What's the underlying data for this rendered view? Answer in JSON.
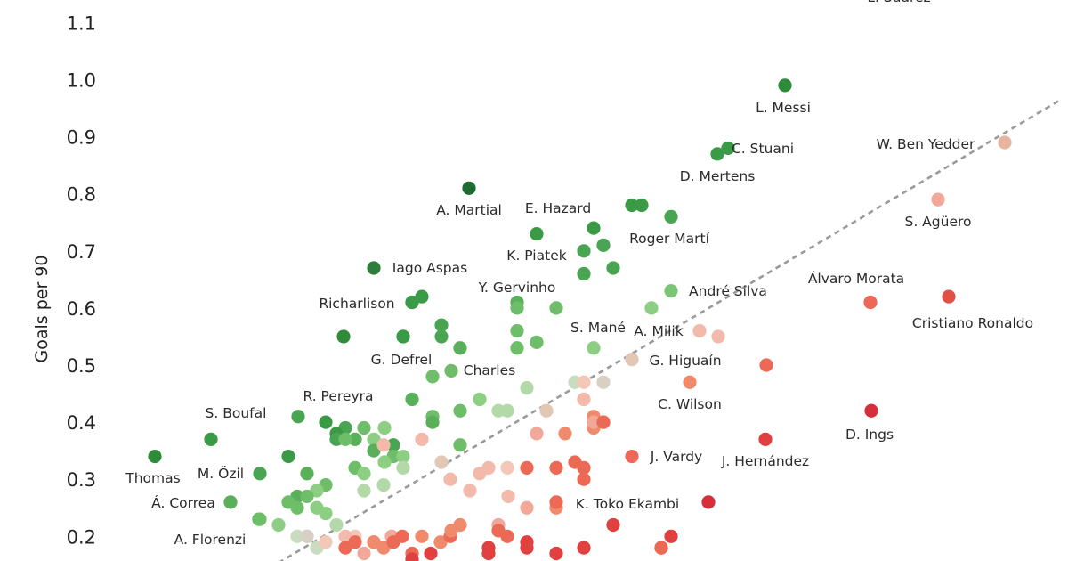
{
  "chart_data": {
    "type": "scatter",
    "ylabel": "Goals per 90",
    "ylim": [
      0.17,
      1.16
    ],
    "yticks": [
      "0.2",
      "0.3",
      "0.4",
      "0.5",
      "0.6",
      "0.7",
      "0.8",
      "0.9",
      "1.0",
      "1.1"
    ],
    "reference_line": {
      "style": "dashed",
      "color": "#9a9a9a",
      "from": [
        0.0,
        0.17
      ],
      "to": [
        1.0,
        0.96
      ]
    },
    "labeled_points": [
      {
        "name": "L. Suárez",
        "y": 1.2,
        "color": "#2e7d32",
        "label": "L. Suárez"
      },
      {
        "name": "L. Messi",
        "y": 0.99,
        "color": "#2e8b3a",
        "label": "L. Messi"
      },
      {
        "name": "W. Ben Yedder",
        "y": 0.89,
        "color": "#e8b4a0",
        "label": "W. Ben Yedder"
      },
      {
        "name": "C. Stuani",
        "y": 0.88,
        "color": "#3a9a46",
        "label": "C. Stuani"
      },
      {
        "name": "D. Mertens",
        "y": 0.87,
        "color": "#3a9a46",
        "label": "D. Mertens"
      },
      {
        "name": "A. Martial",
        "y": 0.81,
        "color": "#1e6b33",
        "label": "A. Martial"
      },
      {
        "name": "S. Agüero",
        "y": 0.79,
        "color": "#f1a899",
        "label": "S. Agüero"
      },
      {
        "name": "E. Hazard",
        "y": 0.74,
        "color": "#3a9a46",
        "label": "E. Hazard"
      },
      {
        "name": "Roger Martí",
        "y": 0.76,
        "color": "#4aa552",
        "label": "Roger Martí"
      },
      {
        "name": "K. Piatek",
        "y": 0.73,
        "color": "#3a9a46",
        "label": "K. Piatek"
      },
      {
        "name": "Iago Aspas",
        "y": 0.67,
        "color": "#2e7d3a",
        "label": "Iago Aspas"
      },
      {
        "name": "André Silva",
        "y": 0.63,
        "color": "#7cc576",
        "label": "André Silva"
      },
      {
        "name": "Álvaro Morata",
        "y": 0.61,
        "color": "#ec6a55",
        "label": "Álvaro Morata"
      },
      {
        "name": "Cristiano Ronaldo",
        "y": 0.62,
        "color": "#e05045",
        "label": "Cristiano Ronaldo"
      },
      {
        "name": "Richarlison",
        "y": 0.61,
        "color": "#3a9a46",
        "label": "Richarlison"
      },
      {
        "name": "Y. Gervinho",
        "y": 0.6,
        "color": "#6ebd68",
        "label": "Y. Gervinho"
      },
      {
        "name": "S. Mané",
        "y": 0.53,
        "color": "#8ccf82",
        "label": "S. Mané"
      },
      {
        "name": "A. Milik",
        "y": 0.56,
        "color": "#f3b9ab",
        "label": "A. Milik"
      },
      {
        "name": "G. Defrel",
        "y": 0.55,
        "color": "#3a9a46",
        "label": "G. Defrel"
      },
      {
        "name": "G. Higuaín",
        "y": 0.51,
        "color": "#e2c8b4",
        "label": "G. Higuaín"
      },
      {
        "name": "Charles",
        "y": 0.49,
        "color": "#6ebd68",
        "label": "Charles"
      },
      {
        "name": "C. Wilson",
        "y": 0.47,
        "color": "#f08a6c",
        "label": "C. Wilson"
      },
      {
        "name": "R. Pereyra",
        "y": 0.41,
        "color": "#4aa552",
        "label": "R. Pereyra"
      },
      {
        "name": "S. Boufal",
        "y": 0.37,
        "color": "#3a9a46",
        "label": "S. Boufal"
      },
      {
        "name": "D. Ings",
        "y": 0.42,
        "color": "#d42f3a",
        "label": "D. Ings"
      },
      {
        "name": "J. Hernández",
        "y": 0.37,
        "color": "#e04040",
        "label": "J. Hernández"
      },
      {
        "name": "J. Vardy",
        "y": 0.34,
        "color": "#ec6a55",
        "label": "J. Vardy"
      },
      {
        "name": "Thomas",
        "y": 0.34,
        "color": "#2e8b3a",
        "label": "Thomas"
      },
      {
        "name": "M. Özil",
        "y": 0.31,
        "color": "#4aa552",
        "label": "M. Özil"
      },
      {
        "name": "Á. Correa",
        "y": 0.26,
        "color": "#5ab05a",
        "label": "Á. Correa"
      },
      {
        "name": "K. Toko Ekambi",
        "y": 0.26,
        "color": "#ec6a55",
        "label": "K. Toko Ekambi"
      },
      {
        "name": "A. Florenzi",
        "y": 0.23,
        "color": "#6ebd68",
        "label": "A. Florenzi"
      }
    ],
    "other_points": [
      {
        "y": 0.26,
        "color": "#d42f3a"
      },
      {
        "y": 0.22,
        "color": "#e04040"
      },
      {
        "y": 0.18,
        "color": "#d42f3a"
      },
      {
        "y": 0.18,
        "color": "#e04040"
      },
      {
        "y": 0.5,
        "color": "#ec6a55"
      },
      {
        "y": 0.55,
        "color": "#f3b9ab"
      },
      {
        "y": 0.6,
        "color": "#8ccf82"
      },
      {
        "y": 0.78,
        "color": "#3a9a46"
      },
      {
        "y": 0.78,
        "color": "#3a9a46"
      },
      {
        "y": 0.7,
        "color": "#4aa552"
      },
      {
        "y": 0.71,
        "color": "#4aa552"
      },
      {
        "y": 0.66,
        "color": "#4aa552"
      },
      {
        "y": 0.67,
        "color": "#4aa552"
      },
      {
        "y": 0.61,
        "color": "#5ab05a"
      },
      {
        "y": 0.62,
        "color": "#3a9a46"
      },
      {
        "y": 0.61,
        "color": "#3a9a46"
      },
      {
        "y": 0.57,
        "color": "#4aa552"
      },
      {
        "y": 0.55,
        "color": "#4aa552"
      },
      {
        "y": 0.55,
        "color": "#2e8b3a"
      },
      {
        "y": 0.55,
        "color": "#2e8b3a"
      },
      {
        "y": 0.53,
        "color": "#5ab05a"
      },
      {
        "y": 0.56,
        "color": "#6ebd68"
      },
      {
        "y": 0.53,
        "color": "#6ebd68"
      },
      {
        "y": 0.54,
        "color": "#6ebd68"
      },
      {
        "y": 0.6,
        "color": "#6ebd68"
      },
      {
        "y": 0.48,
        "color": "#6ebd68"
      },
      {
        "y": 0.46,
        "color": "#b3d9a8"
      },
      {
        "y": 0.47,
        "color": "#c9dcc0"
      },
      {
        "y": 0.47,
        "color": "#d8d0c4"
      },
      {
        "y": 0.47,
        "color": "#f3c8b8"
      },
      {
        "y": 0.44,
        "color": "#f3b9ab"
      },
      {
        "y": 0.42,
        "color": "#e2c8b4"
      },
      {
        "y": 0.42,
        "color": "#b3d9a8"
      },
      {
        "y": 0.42,
        "color": "#b3d9a8"
      },
      {
        "y": 0.44,
        "color": "#8ccf82"
      },
      {
        "y": 0.42,
        "color": "#6ebd68"
      },
      {
        "y": 0.41,
        "color": "#6ebd68"
      },
      {
        "y": 0.44,
        "color": "#5ab05a"
      },
      {
        "y": 0.4,
        "color": "#5ab05a"
      },
      {
        "y": 0.39,
        "color": "#8ccf82"
      },
      {
        "y": 0.37,
        "color": "#8ccf82"
      },
      {
        "y": 0.39,
        "color": "#6ebd68"
      },
      {
        "y": 0.36,
        "color": "#6ebd68"
      },
      {
        "y": 0.4,
        "color": "#3a9a46"
      },
      {
        "y": 0.39,
        "color": "#4aa552"
      },
      {
        "y": 0.38,
        "color": "#3a9a46"
      },
      {
        "y": 0.37,
        "color": "#4aa552"
      },
      {
        "y": 0.37,
        "color": "#5ab05a"
      },
      {
        "y": 0.37,
        "color": "#6ebd68"
      },
      {
        "y": 0.36,
        "color": "#4aa552"
      },
      {
        "y": 0.35,
        "color": "#5ab05a"
      },
      {
        "y": 0.34,
        "color": "#6ebd68"
      },
      {
        "y": 0.34,
        "color": "#8ccf82"
      },
      {
        "y": 0.33,
        "color": "#8ccf82"
      },
      {
        "y": 0.32,
        "color": "#b3d9a8"
      },
      {
        "y": 0.34,
        "color": "#3a9a46"
      },
      {
        "y": 0.31,
        "color": "#5ab05a"
      },
      {
        "y": 0.32,
        "color": "#6ebd68"
      },
      {
        "y": 0.31,
        "color": "#8ccf82"
      },
      {
        "y": 0.29,
        "color": "#6ebd68"
      },
      {
        "y": 0.28,
        "color": "#8ccf82"
      },
      {
        "y": 0.28,
        "color": "#b3d9a8"
      },
      {
        "y": 0.29,
        "color": "#b3d9a8"
      },
      {
        "y": 0.27,
        "color": "#5ab05a"
      },
      {
        "y": 0.27,
        "color": "#6ebd68"
      },
      {
        "y": 0.26,
        "color": "#6ebd68"
      },
      {
        "y": 0.25,
        "color": "#6ebd68"
      },
      {
        "y": 0.25,
        "color": "#8ccf82"
      },
      {
        "y": 0.24,
        "color": "#8ccf82"
      },
      {
        "y": 0.23,
        "color": "#5ab05a"
      },
      {
        "y": 0.22,
        "color": "#8ccf82"
      },
      {
        "y": 0.22,
        "color": "#b3d9a8"
      },
      {
        "y": 0.2,
        "color": "#b3d9a8"
      },
      {
        "y": 0.2,
        "color": "#c9dcc0"
      },
      {
        "y": 0.18,
        "color": "#c9dcc0"
      },
      {
        "y": 0.2,
        "color": "#d8d0c4"
      },
      {
        "y": 0.19,
        "color": "#f3c8b8"
      },
      {
        "y": 0.2,
        "color": "#f3c8b8"
      },
      {
        "y": 0.2,
        "color": "#f3b9ab"
      },
      {
        "y": 0.19,
        "color": "#f3b9ab"
      },
      {
        "y": 0.2,
        "color": "#f1a899"
      },
      {
        "y": 0.17,
        "color": "#f1a899"
      },
      {
        "y": 0.19,
        "color": "#f08a6c"
      },
      {
        "y": 0.18,
        "color": "#f08a6c"
      },
      {
        "y": 0.2,
        "color": "#ec6a55"
      },
      {
        "y": 0.19,
        "color": "#ec6a55"
      },
      {
        "y": 0.18,
        "color": "#ec6a55"
      },
      {
        "y": 0.19,
        "color": "#ec6a55"
      },
      {
        "y": 0.17,
        "color": "#ec6a55"
      },
      {
        "y": 0.17,
        "color": "#e04040"
      },
      {
        "y": 0.2,
        "color": "#f08a6c"
      },
      {
        "y": 0.19,
        "color": "#f08a6c"
      },
      {
        "y": 0.2,
        "color": "#ec6a55"
      },
      {
        "y": 0.22,
        "color": "#f08a6c"
      },
      {
        "y": 0.21,
        "color": "#f08a6c"
      },
      {
        "y": 0.22,
        "color": "#f1a899"
      },
      {
        "y": 0.25,
        "color": "#f08a6c"
      },
      {
        "y": 0.25,
        "color": "#f1a899"
      },
      {
        "y": 0.27,
        "color": "#f3b9ab"
      },
      {
        "y": 0.28,
        "color": "#f3b9ab"
      },
      {
        "y": 0.31,
        "color": "#f3b9ab"
      },
      {
        "y": 0.32,
        "color": "#f3b9ab"
      },
      {
        "y": 0.32,
        "color": "#f3c8b8"
      },
      {
        "y": 0.33,
        "color": "#e2c8b4"
      },
      {
        "y": 0.3,
        "color": "#f3b9ab"
      },
      {
        "y": 0.36,
        "color": "#f3b9ab"
      },
      {
        "y": 0.37,
        "color": "#f3b9ab"
      },
      {
        "y": 0.38,
        "color": "#f1a899"
      },
      {
        "y": 0.38,
        "color": "#f08a6c"
      },
      {
        "y": 0.39,
        "color": "#f08a6c"
      },
      {
        "y": 0.41,
        "color": "#f08a6c"
      },
      {
        "y": 0.4,
        "color": "#f1a899"
      },
      {
        "y": 0.32,
        "color": "#ec6a55"
      },
      {
        "y": 0.32,
        "color": "#ec6a55"
      },
      {
        "y": 0.32,
        "color": "#ec6a55"
      },
      {
        "y": 0.33,
        "color": "#ec6a55"
      },
      {
        "y": 0.3,
        "color": "#ec6a55"
      },
      {
        "y": 0.4,
        "color": "#ec6a55"
      },
      {
        "y": 0.4,
        "color": "#ec6a55"
      },
      {
        "y": 0.18,
        "color": "#ec6a55"
      },
      {
        "y": 0.2,
        "color": "#e04040"
      },
      {
        "y": 0.18,
        "color": "#e04040"
      },
      {
        "y": 0.18,
        "color": "#e04040"
      },
      {
        "y": 0.17,
        "color": "#e04040"
      },
      {
        "y": 0.17,
        "color": "#e04040"
      },
      {
        "y": 0.19,
        "color": "#e04040"
      },
      {
        "y": 0.2,
        "color": "#ec6a55"
      },
      {
        "y": 0.21,
        "color": "#ec6a55"
      },
      {
        "y": 0.16,
        "color": "#e04040"
      }
    ]
  }
}
